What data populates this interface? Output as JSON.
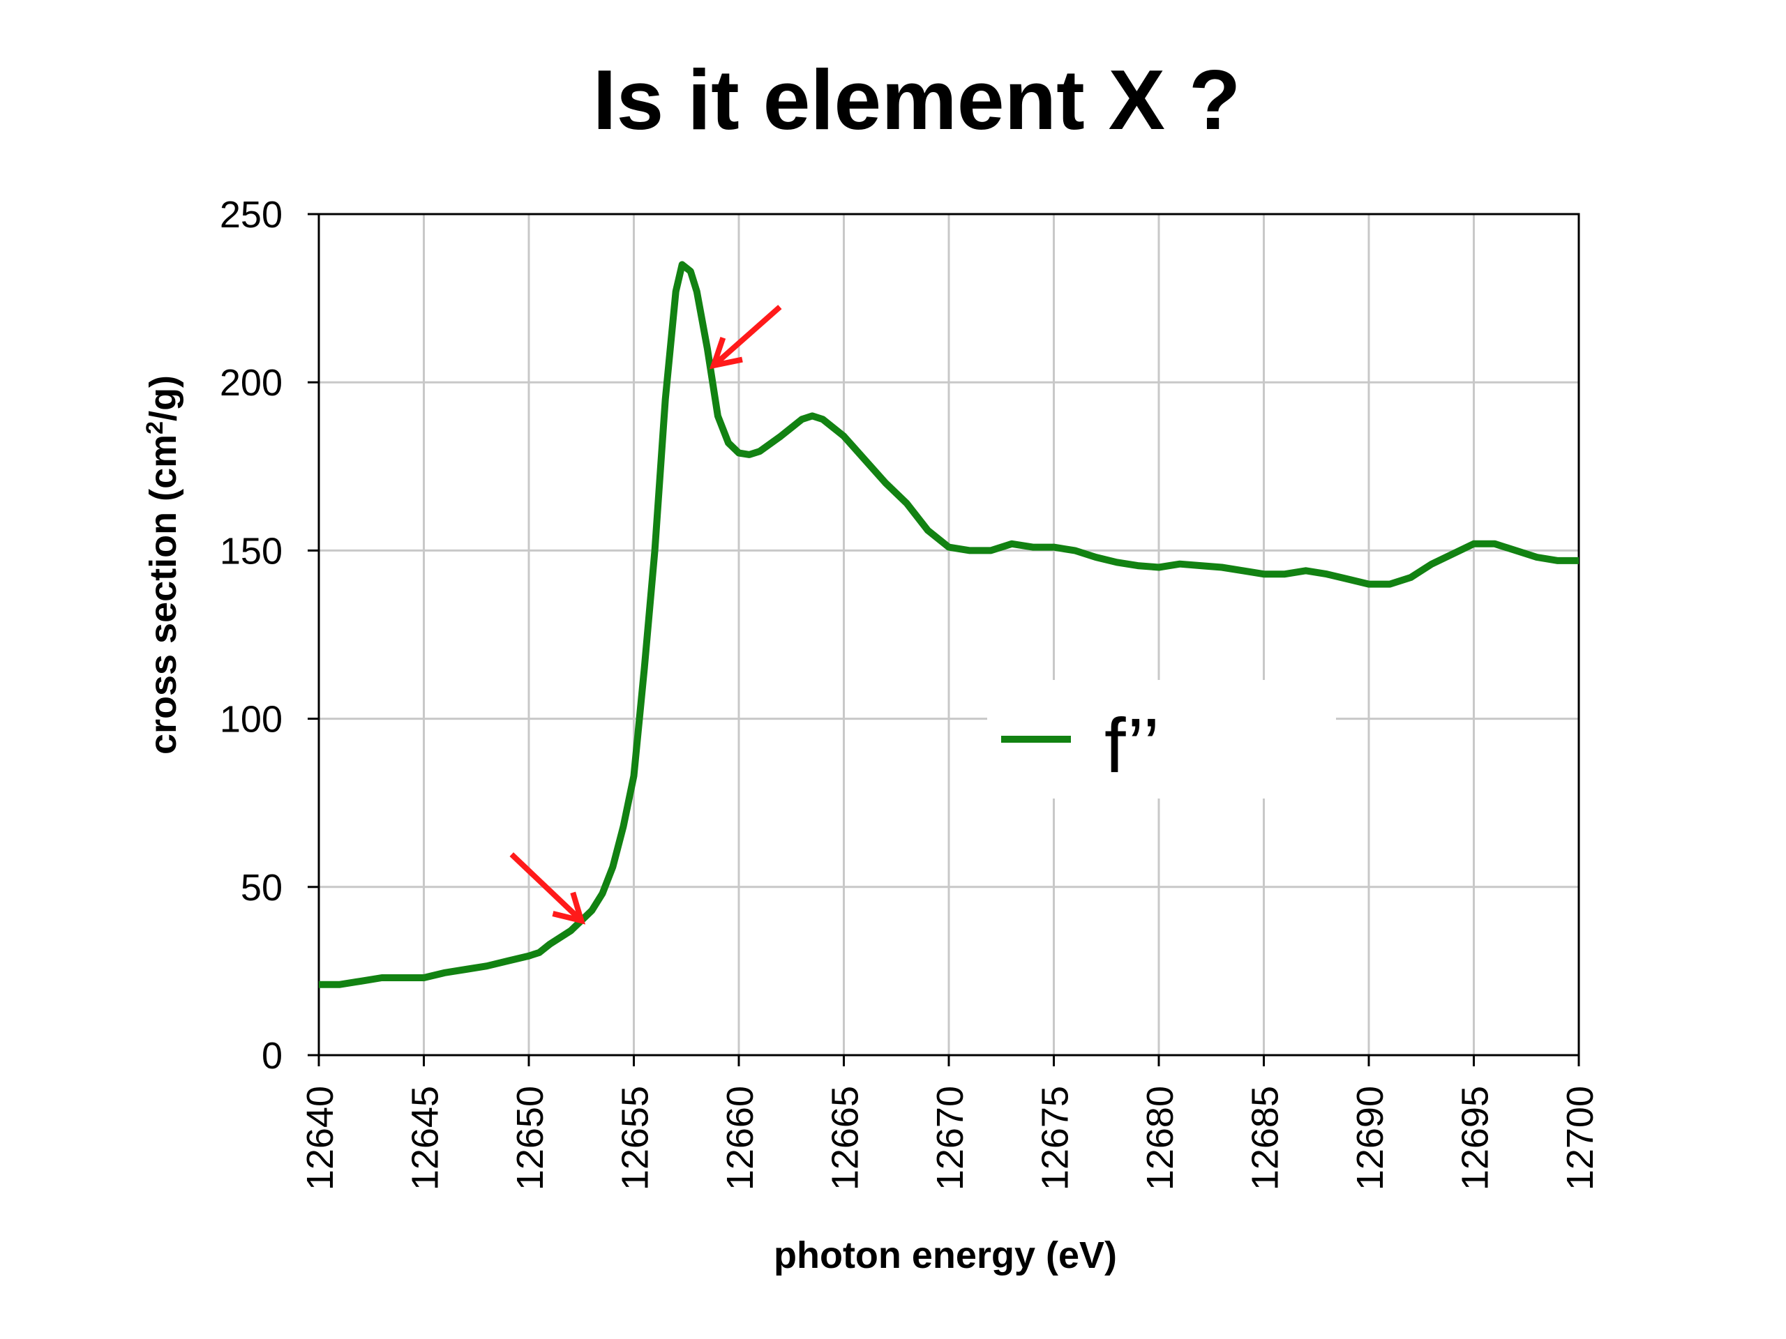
{
  "chart_data": {
    "type": "line",
    "title": "Is it element X ?",
    "xlabel": "photon energy (eV)",
    "ylabel_main": "cross section (cm",
    "ylabel_sup": "2",
    "ylabel_tail": "/g)",
    "xlim": [
      12640,
      12700
    ],
    "ylim": [
      0,
      250
    ],
    "x_ticks": [
      12640,
      12645,
      12650,
      12655,
      12660,
      12665,
      12670,
      12675,
      12680,
      12685,
      12690,
      12695,
      12700
    ],
    "y_ticks": [
      0,
      50,
      100,
      150,
      200,
      250
    ],
    "grid": true,
    "legend_position": "center-right",
    "series": [
      {
        "name": "f’’",
        "color": "#128212",
        "points": [
          [
            12640,
            21
          ],
          [
            12641,
            21
          ],
          [
            12642,
            22
          ],
          [
            12643,
            23
          ],
          [
            12644,
            23
          ],
          [
            12645,
            23
          ],
          [
            12646,
            24.5
          ],
          [
            12647,
            25.5
          ],
          [
            12648,
            26.5
          ],
          [
            12649,
            28
          ],
          [
            12650,
            29.5
          ],
          [
            12650.5,
            30.5
          ],
          [
            12651,
            33
          ],
          [
            12652,
            37
          ],
          [
            12652.5,
            40
          ],
          [
            12653,
            43
          ],
          [
            12653.5,
            48
          ],
          [
            12654,
            56
          ],
          [
            12654.5,
            68
          ],
          [
            12655,
            83
          ],
          [
            12655.5,
            115
          ],
          [
            12656,
            150
          ],
          [
            12656.5,
            195
          ],
          [
            12657,
            227
          ],
          [
            12657.3,
            235
          ],
          [
            12657.7,
            233
          ],
          [
            12658,
            227
          ],
          [
            12658.5,
            210
          ],
          [
            12659,
            190
          ],
          [
            12659.5,
            182
          ],
          [
            12660,
            179
          ],
          [
            12660.5,
            178.5
          ],
          [
            12661,
            179.5
          ],
          [
            12662,
            184
          ],
          [
            12663,
            189
          ],
          [
            12663.5,
            190
          ],
          [
            12664,
            189
          ],
          [
            12665,
            184
          ],
          [
            12666,
            177
          ],
          [
            12667,
            170
          ],
          [
            12668,
            164
          ],
          [
            12669,
            156
          ],
          [
            12670,
            151
          ],
          [
            12671,
            150
          ],
          [
            12672,
            150
          ],
          [
            12673,
            152
          ],
          [
            12674,
            151
          ],
          [
            12675,
            151
          ],
          [
            12676,
            150
          ],
          [
            12677,
            148
          ],
          [
            12678,
            146.5
          ],
          [
            12679,
            145.5
          ],
          [
            12680,
            145
          ],
          [
            12681,
            146
          ],
          [
            12682,
            145.5
          ],
          [
            12683,
            145
          ],
          [
            12684,
            144
          ],
          [
            12685,
            143
          ],
          [
            12686,
            143
          ],
          [
            12687,
            144
          ],
          [
            12688,
            143
          ],
          [
            12689,
            141.5
          ],
          [
            12690,
            140
          ],
          [
            12691,
            140
          ],
          [
            12692,
            142
          ],
          [
            12693,
            146
          ],
          [
            12694,
            149
          ],
          [
            12695,
            152
          ],
          [
            12696,
            152
          ],
          [
            12697,
            150
          ],
          [
            12698,
            148
          ],
          [
            12699,
            147
          ],
          [
            12700,
            147
          ]
        ]
      }
    ],
    "annotations": [
      {
        "type": "arrow",
        "color": "#ff1a1a",
        "points_to": [
          12658.8,
          205
        ]
      },
      {
        "type": "arrow",
        "color": "#ff1a1a",
        "points_to": [
          12652.5,
          40
        ]
      }
    ]
  }
}
